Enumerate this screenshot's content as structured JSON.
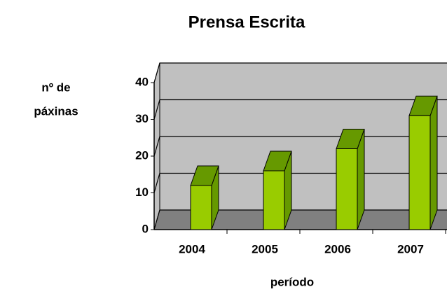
{
  "chart_data": {
    "type": "bar3d",
    "title": "Prensa Escrita",
    "y_label": [
      "nº de",
      "páxinas"
    ],
    "x_label": "período",
    "categories": [
      "2004",
      "2005",
      "2006",
      "2007"
    ],
    "values": [
      12,
      16,
      22,
      31
    ],
    "color": "#99cc00",
    "side_color": "#669900",
    "wall_color": "#c0c0c0",
    "floor_color": "#808080",
    "ylim": [
      0,
      40
    ],
    "yticks": [
      0,
      10,
      20,
      30,
      40
    ],
    "grid": true
  }
}
